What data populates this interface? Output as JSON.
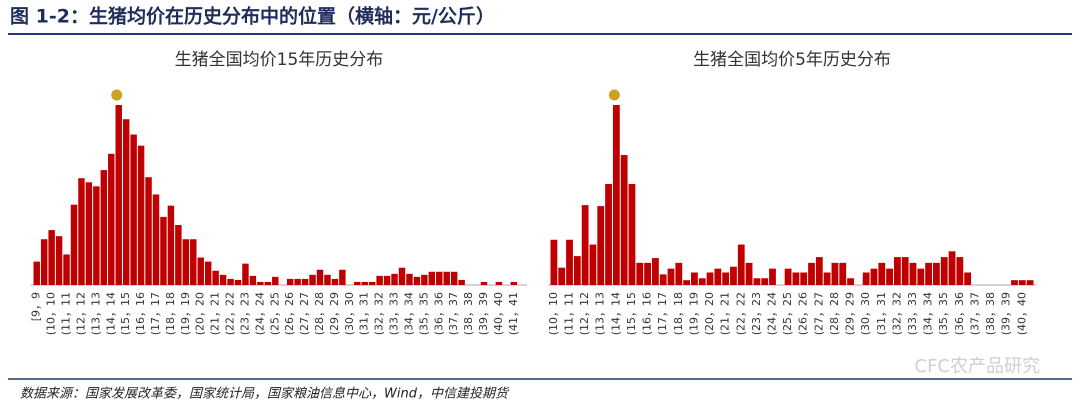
{
  "figure_title": "图 1-2：生猪均价在历史分布中的位置（横轴：元/公斤）",
  "source": "数据来源：国家发展改革委，国家统计局，国家粮油信息中心，Wind，中信建投期货",
  "watermark": "CFC农产品研究",
  "chart_data": [
    {
      "type": "bar",
      "title": "生猪全国均价15年历史分布",
      "color": "#c00000",
      "highlight": 11,
      "highlight_color": "#c9a227",
      "categories": [
        "[9，9",
        null,
        "(10，10",
        null,
        "(11，11",
        null,
        "(12，12",
        null,
        "(13，13",
        null,
        "(14，14",
        null,
        "(15，15",
        null,
        "(16，16",
        null,
        "(17，17",
        null,
        "(18，18",
        null,
        "(19，19",
        null,
        "(20，20",
        null,
        "(21，21",
        null,
        "(22，22",
        null,
        "(23，23",
        null,
        "(24，24",
        null,
        "(25，25",
        null,
        "(26，26",
        null,
        "(27，27",
        null,
        "(28，28",
        null,
        "(29，29",
        null,
        "(30，30",
        null,
        "(31，31",
        null,
        "(32，32",
        null,
        "(33，33",
        null,
        "(34，34",
        null,
        "(35，35",
        null,
        "(36，36",
        null,
        "(37，37",
        null,
        "(38，38",
        null,
        "(39，39",
        null,
        "(40，40",
        null,
        "(41，41",
        null
      ],
      "values": [
        23,
        45,
        54,
        48,
        30,
        79,
        105,
        101,
        97,
        113,
        129,
        177,
        163,
        148,
        137,
        106,
        89,
        67,
        78,
        59,
        45,
        45,
        27,
        23,
        14,
        10,
        6,
        5,
        21,
        9,
        3,
        3,
        8,
        0,
        6,
        6,
        6,
        10,
        15,
        10,
        6,
        15,
        0,
        3,
        3,
        3,
        9,
        9,
        11,
        17,
        11,
        8,
        10,
        13,
        13,
        13,
        13,
        5,
        0,
        0,
        3,
        0,
        3,
        0,
        3,
        0
      ]
    },
    {
      "type": "bar",
      "title": "生猪全国均价5年历史分布",
      "color": "#c00000",
      "highlight": 8,
      "highlight_color": "#c9a227",
      "categories": [
        "(10，10",
        null,
        "(11，11",
        null,
        "(12，12",
        null,
        "(13，13",
        null,
        "(14，14",
        null,
        "(15，15",
        null,
        "(16，16",
        null,
        "(17，17",
        null,
        "(18，18",
        null,
        "(19，19",
        null,
        "(20，20",
        null,
        "(21，21",
        null,
        "(22，22",
        null,
        "(23，23",
        null,
        "(24，24",
        null,
        "(25，25",
        null,
        "(26，26",
        null,
        "(27，27",
        null,
        "(28，28",
        null,
        "(29，29",
        null,
        "(30，30",
        null,
        "(31，31",
        null,
        "(32，32",
        null,
        "(33，33",
        null,
        "(34，34",
        null,
        "(35，35",
        null,
        "(36，36",
        null,
        "(37，37",
        null,
        "(38，38",
        null,
        "(39，39",
        null,
        "(40，40",
        null
      ],
      "values": [
        47,
        18,
        47,
        30,
        83,
        42,
        82,
        105,
        187,
        135,
        105,
        23,
        23,
        28,
        11,
        17,
        23,
        5,
        13,
        7,
        13,
        17,
        13,
        19,
        42,
        23,
        7,
        7,
        17,
        0,
        17,
        13,
        13,
        23,
        29,
        13,
        23,
        23,
        7,
        0,
        13,
        17,
        23,
        17,
        29,
        29,
        23,
        17,
        23,
        23,
        29,
        35,
        29,
        13,
        0,
        0,
        0,
        0,
        0,
        5,
        5,
        5
      ]
    }
  ]
}
